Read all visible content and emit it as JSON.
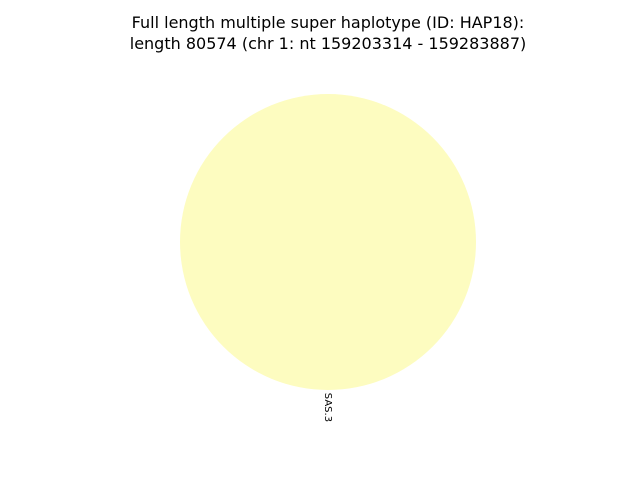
{
  "chart_data": {
    "type": "pie",
    "title": [
      "Full length multiple super haplotype (ID: HAP18):",
      "length 80574 (chr 1: nt 159203314 - 159283887)"
    ],
    "slices": [
      {
        "label": "SAS.3",
        "value": 1,
        "color": "#fdfcc0"
      }
    ],
    "legend": "none"
  }
}
